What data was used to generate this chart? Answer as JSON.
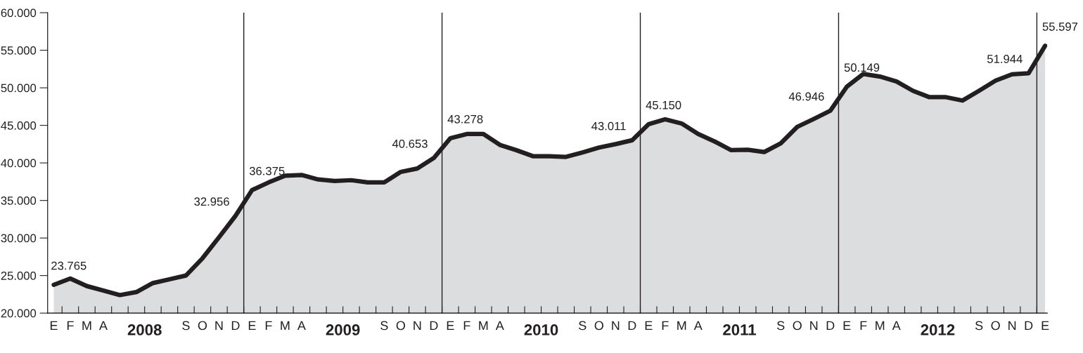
{
  "chart_data": {
    "type": "area",
    "categories": [
      "E",
      "F",
      "M",
      "A",
      null,
      null,
      null,
      null,
      "S",
      "O",
      "N",
      "D",
      "E",
      "F",
      "M",
      "A",
      null,
      null,
      null,
      null,
      "S",
      "O",
      "N",
      "D",
      "E",
      "F",
      "M",
      "A",
      null,
      null,
      null,
      null,
      "S",
      "O",
      "N",
      "D",
      "E",
      "F",
      "M",
      "A",
      null,
      null,
      null,
      null,
      "S",
      "O",
      "N",
      "D",
      "E",
      "F",
      "M",
      "A",
      null,
      null,
      null,
      null,
      "S",
      "O",
      "N",
      "D",
      "E"
    ],
    "series": [
      {
        "color": "#231f20",
        "values": [
          23765,
          24600,
          23600,
          23000,
          22400,
          22800,
          24000,
          24500,
          25000,
          27300,
          30100,
          32956,
          36375,
          37400,
          38300,
          38400,
          37800,
          37600,
          37700,
          37400,
          37400,
          38800,
          39250,
          40653,
          43278,
          43850,
          43850,
          42400,
          41700,
          40900,
          40900,
          40800,
          41400,
          42050,
          42500,
          43011,
          45150,
          45800,
          45250,
          43850,
          42850,
          41700,
          41750,
          41450,
          42600,
          44800,
          45850,
          46946,
          50149,
          51850,
          51500,
          50850,
          49600,
          48750,
          48750,
          48300,
          49600,
          50950,
          51800,
          51944,
          55597
        ],
        "value_labels": [
          "23.765",
          null,
          null,
          null,
          null,
          null,
          null,
          null,
          null,
          null,
          null,
          "32.956",
          "36.375",
          null,
          null,
          null,
          null,
          null,
          null,
          null,
          null,
          null,
          null,
          "40.653",
          "43.278",
          null,
          null,
          null,
          null,
          null,
          null,
          null,
          null,
          null,
          null,
          "43.011",
          "45.150",
          null,
          null,
          null,
          null,
          null,
          null,
          null,
          null,
          null,
          null,
          "46.946",
          "50.149",
          null,
          null,
          null,
          null,
          null,
          null,
          null,
          null,
          null,
          null,
          "51.944",
          "55.597"
        ]
      }
    ],
    "ylim": [
      20000,
      60000
    ],
    "yticks": [
      {
        "value": 20000,
        "label": "20.000"
      },
      {
        "value": 25000,
        "label": "25.000"
      },
      {
        "value": 30000,
        "label": "30.000"
      },
      {
        "value": 35000,
        "label": "35.000"
      },
      {
        "value": 40000,
        "label": "40.000"
      },
      {
        "value": 45000,
        "label": "45.000"
      },
      {
        "value": 50000,
        "label": "50.000"
      },
      {
        "value": 55000,
        "label": "55.000"
      },
      {
        "value": 60000,
        "label": "60.000"
      }
    ],
    "annotations": [
      "2008",
      "2009",
      "2010",
      "2011",
      "2012"
    ],
    "grid": false,
    "legend": false,
    "marker": "none",
    "line_style": "solid"
  }
}
